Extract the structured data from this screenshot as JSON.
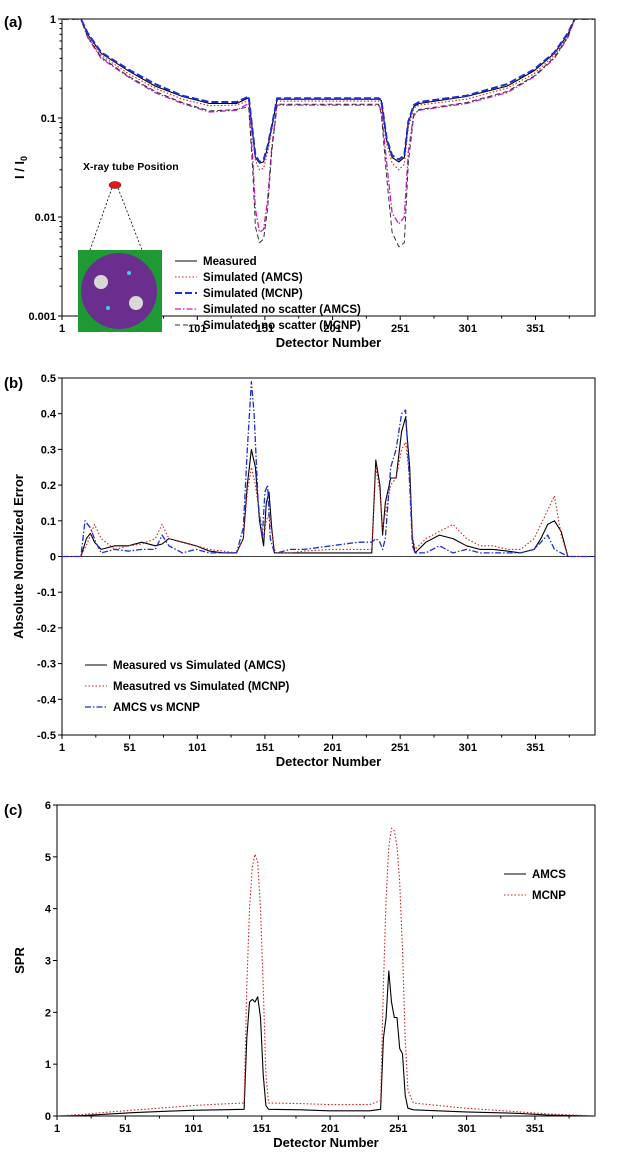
{
  "colors": {
    "black": "#000000",
    "red": "#d42020",
    "blue": "#1a2fd6",
    "magenta": "#c020c0",
    "gray": "#333333",
    "phantom_bg": "#1e9a34",
    "phantom_body": "#6a2f8e",
    "tube": "#e01818"
  },
  "chart_data": [
    {
      "type": "line",
      "panel_label": "(a)",
      "xlabel": "Detector Number",
      "ylabel": "I / I",
      "ylabel_sub": "0",
      "yscale": "log",
      "xlim": [
        1,
        395
      ],
      "ylim": [
        0.001,
        1
      ],
      "x_ticks": [
        "1",
        "51",
        "101",
        "151",
        "201",
        "251",
        "301",
        "351"
      ],
      "y_ticks": [
        "0.001",
        "0.01",
        "0.1",
        "1"
      ],
      "legend_position": "bottom-center",
      "inset": {
        "label": "X-ray tube Position",
        "kind": "phantom-image"
      },
      "series": [
        {
          "name": "Measured",
          "color": "#000000",
          "style": "solid",
          "x": [
            1,
            15,
            20,
            30,
            50,
            70,
            90,
            110,
            130,
            139,
            142,
            144,
            147,
            150,
            153,
            156,
            160,
            200,
            235,
            237,
            241,
            245,
            250,
            254,
            257,
            261,
            265,
            300,
            330,
            350,
            365,
            375,
            380,
            395
          ],
          "y": [
            1,
            1,
            0.7,
            0.45,
            0.3,
            0.21,
            0.165,
            0.14,
            0.14,
            0.16,
            0.07,
            0.04,
            0.035,
            0.036,
            0.05,
            0.08,
            0.155,
            0.155,
            0.155,
            0.15,
            0.06,
            0.04,
            0.036,
            0.04,
            0.09,
            0.13,
            0.14,
            0.165,
            0.21,
            0.3,
            0.45,
            0.7,
            1,
            1
          ]
        },
        {
          "name": "Simulated (AMCS)",
          "color": "#d42020",
          "style": "dotted",
          "x": [
            1,
            15,
            20,
            30,
            50,
            70,
            90,
            110,
            130,
            139,
            142,
            144,
            147,
            150,
            153,
            156,
            160,
            200,
            235,
            237,
            241,
            245,
            250,
            254,
            257,
            261,
            265,
            300,
            330,
            350,
            365,
            375,
            380,
            395
          ],
          "y": [
            1,
            1,
            0.68,
            0.43,
            0.28,
            0.2,
            0.155,
            0.133,
            0.135,
            0.15,
            0.065,
            0.037,
            0.03,
            0.031,
            0.045,
            0.075,
            0.148,
            0.148,
            0.148,
            0.14,
            0.055,
            0.035,
            0.03,
            0.034,
            0.08,
            0.125,
            0.135,
            0.155,
            0.2,
            0.28,
            0.43,
            0.68,
            1,
            1
          ]
        },
        {
          "name": "Simulated (MCNP)",
          "color": "#1a2fd6",
          "style": "dashed",
          "x": [
            1,
            15,
            20,
            30,
            50,
            70,
            90,
            110,
            130,
            139,
            142,
            144,
            147,
            150,
            153,
            156,
            160,
            200,
            235,
            237,
            241,
            245,
            250,
            254,
            257,
            261,
            265,
            300,
            330,
            350,
            365,
            375,
            380,
            395
          ],
          "y": [
            1,
            1,
            0.72,
            0.46,
            0.31,
            0.22,
            0.168,
            0.145,
            0.145,
            0.165,
            0.072,
            0.042,
            0.036,
            0.038,
            0.052,
            0.082,
            0.158,
            0.158,
            0.158,
            0.152,
            0.062,
            0.042,
            0.038,
            0.042,
            0.092,
            0.135,
            0.145,
            0.168,
            0.22,
            0.31,
            0.46,
            0.72,
            1,
            1
          ]
        },
        {
          "name": "Simulated no scatter (AMCS)",
          "color": "#c020c0",
          "style": "dashdot",
          "x": [
            1,
            15,
            20,
            30,
            50,
            70,
            90,
            110,
            130,
            139,
            142,
            144,
            147,
            150,
            153,
            156,
            160,
            200,
            235,
            237,
            241,
            245,
            250,
            254,
            257,
            261,
            265,
            300,
            330,
            350,
            365,
            375,
            380,
            395
          ],
          "y": [
            1,
            1,
            0.65,
            0.4,
            0.26,
            0.18,
            0.14,
            0.115,
            0.12,
            0.14,
            0.04,
            0.012,
            0.007,
            0.0075,
            0.015,
            0.05,
            0.135,
            0.135,
            0.135,
            0.12,
            0.035,
            0.011,
            0.0085,
            0.01,
            0.045,
            0.11,
            0.12,
            0.14,
            0.18,
            0.26,
            0.4,
            0.65,
            1,
            1
          ]
        },
        {
          "name": "Simulated no scatter (MCNP)",
          "color": "#333333",
          "style": "longdash",
          "x": [
            1,
            15,
            20,
            30,
            50,
            70,
            90,
            110,
            130,
            139,
            142,
            144,
            147,
            150,
            153,
            156,
            160,
            200,
            235,
            237,
            241,
            245,
            250,
            254,
            257,
            261,
            265,
            300,
            330,
            350,
            365,
            375,
            380,
            395
          ],
          "y": [
            1,
            1,
            0.66,
            0.41,
            0.265,
            0.185,
            0.143,
            0.118,
            0.122,
            0.13,
            0.03,
            0.008,
            0.0055,
            0.006,
            0.012,
            0.045,
            0.138,
            0.138,
            0.138,
            0.11,
            0.025,
            0.007,
            0.005,
            0.0055,
            0.035,
            0.105,
            0.122,
            0.143,
            0.185,
            0.265,
            0.41,
            0.66,
            1,
            1
          ]
        }
      ]
    },
    {
      "type": "line",
      "panel_label": "(b)",
      "xlabel": "Detector Number",
      "ylabel": "Absolute Normalized Error",
      "xlim": [
        1,
        395
      ],
      "ylim": [
        -0.5,
        0.5
      ],
      "x_ticks": [
        "1",
        "51",
        "101",
        "151",
        "201",
        "251",
        "301",
        "351"
      ],
      "y_ticks": [
        "-0.5",
        "-0.4",
        "-0.3",
        "-0.2",
        "-0.1",
        "0",
        "0.1",
        "0.2",
        "0.3",
        "0.4",
        "0.5"
      ],
      "legend_position": "bottom-left",
      "series": [
        {
          "name": "Measured vs Simulated (AMCS)",
          "color": "#000000",
          "style": "solid",
          "x": [
            1,
            15,
            19,
            22,
            25,
            30,
            40,
            50,
            60,
            70,
            75,
            80,
            90,
            100,
            110,
            120,
            130,
            135,
            138,
            141,
            144,
            147,
            150,
            152,
            154,
            156,
            158,
            160,
            170,
            180,
            200,
            220,
            230,
            233,
            236,
            238,
            240,
            244,
            248,
            252,
            255,
            258,
            260,
            262,
            270,
            280,
            290,
            300,
            310,
            320,
            330,
            340,
            350,
            355,
            360,
            365,
            370,
            375,
            395
          ],
          "y": [
            0,
            0,
            0.05,
            0.065,
            0.04,
            0.02,
            0.03,
            0.03,
            0.04,
            0.03,
            0.035,
            0.05,
            0.04,
            0.03,
            0.015,
            0.01,
            0.01,
            0.05,
            0.2,
            0.3,
            0.25,
            0.1,
            0.03,
            0.15,
            0.18,
            0.08,
            0.01,
            0.01,
            0.01,
            0.01,
            0.01,
            0.01,
            0.01,
            0.27,
            0.2,
            0.06,
            0.15,
            0.22,
            0.22,
            0.35,
            0.39,
            0.25,
            0.05,
            0.01,
            0.04,
            0.06,
            0.05,
            0.03,
            0.02,
            0.02,
            0.015,
            0.01,
            0.02,
            0.05,
            0.09,
            0.1,
            0.07,
            0,
            0
          ]
        },
        {
          "name": "Measutred vs Simulated (MCNP)",
          "color": "#d42020",
          "style": "dotted",
          "x": [
            1,
            15,
            20,
            25,
            30,
            40,
            50,
            60,
            70,
            75,
            80,
            90,
            100,
            110,
            120,
            130,
            135,
            138,
            141,
            144,
            147,
            150,
            152,
            154,
            156,
            158,
            160,
            170,
            180,
            200,
            220,
            230,
            233,
            236,
            238,
            240,
            244,
            248,
            252,
            255,
            258,
            260,
            262,
            270,
            280,
            290,
            300,
            310,
            320,
            330,
            340,
            350,
            355,
            360,
            365,
            370,
            375,
            395
          ],
          "y": [
            0,
            0,
            0.04,
            0.09,
            0.05,
            0.02,
            0.03,
            0.035,
            0.05,
            0.09,
            0.05,
            0.04,
            0.03,
            0.02,
            0.015,
            0.01,
            0.05,
            0.18,
            0.25,
            0.2,
            0.12,
            0.05,
            0.1,
            0.12,
            0.07,
            0.02,
            0.01,
            0.01,
            0.015,
            0.02,
            0.02,
            0.02,
            0.25,
            0.18,
            0.08,
            0.12,
            0.2,
            0.22,
            0.3,
            0.32,
            0.22,
            0.06,
            0.02,
            0.05,
            0.07,
            0.09,
            0.05,
            0.03,
            0.03,
            0.02,
            0.02,
            0.05,
            0.09,
            0.13,
            0.17,
            0.06,
            0,
            0
          ]
        },
        {
          "name": "AMCS vs MCNP",
          "color": "#1a2fd6",
          "style": "dashdot",
          "x": [
            1,
            15,
            18,
            22,
            26,
            30,
            40,
            50,
            60,
            70,
            75,
            80,
            90,
            100,
            110,
            120,
            130,
            135,
            138,
            141,
            143,
            146,
            149,
            151,
            153,
            155,
            158,
            160,
            170,
            180,
            200,
            220,
            230,
            233,
            236,
            238,
            240,
            244,
            248,
            252,
            255,
            258,
            260,
            262,
            270,
            280,
            290,
            300,
            310,
            320,
            330,
            340,
            350,
            355,
            360,
            365,
            370,
            375,
            395
          ],
          "y": [
            0,
            0,
            0.1,
            0.08,
            0.04,
            0.01,
            0.02,
            0.015,
            0.02,
            0.02,
            0.06,
            0.03,
            0.01,
            0.02,
            0.01,
            0.01,
            0.01,
            0.08,
            0.3,
            0.49,
            0.4,
            0.15,
            0.05,
            0.18,
            0.2,
            0.05,
            0.01,
            0.01,
            0.02,
            0.02,
            0.03,
            0.04,
            0.04,
            0.05,
            0.04,
            0.02,
            0.05,
            0.25,
            0.3,
            0.4,
            0.41,
            0.2,
            0.03,
            0.01,
            0.01,
            0.03,
            0.01,
            0.02,
            0.01,
            0.01,
            0.01,
            0.01,
            0.02,
            0.04,
            0.06,
            0.02,
            0.01,
            0,
            0
          ]
        }
      ]
    },
    {
      "type": "line",
      "panel_label": "(c)",
      "xlabel": "Detector Number",
      "ylabel": "SPR",
      "xlim": [
        1,
        395
      ],
      "ylim": [
        0,
        6
      ],
      "x_ticks": [
        "1",
        "51",
        "101",
        "151",
        "201",
        "251",
        "301",
        "351"
      ],
      "y_ticks": [
        "0",
        "1",
        "2",
        "3",
        "4",
        "5",
        "6"
      ],
      "legend_position": "top-right",
      "series": [
        {
          "name": "AMCS",
          "color": "#000000",
          "style": "solid",
          "x": [
            1,
            20,
            40,
            60,
            80,
            100,
            120,
            138,
            140,
            142,
            144,
            146,
            148,
            150,
            152,
            154,
            156,
            180,
            200,
            230,
            238,
            240,
            242,
            244,
            246,
            248,
            250,
            252,
            254,
            256,
            258,
            262,
            300,
            340,
            360,
            395
          ],
          "y": [
            0,
            0.01,
            0.04,
            0.07,
            0.09,
            0.11,
            0.12,
            0.13,
            1.5,
            2.2,
            2.25,
            2.2,
            2.3,
            1.9,
            0.8,
            0.2,
            0.13,
            0.12,
            0.1,
            0.1,
            0.13,
            1.5,
            1.9,
            2.8,
            2.2,
            1.9,
            1.9,
            1.3,
            1.2,
            0.4,
            0.15,
            0.12,
            0.08,
            0.05,
            0.02,
            0
          ]
        },
        {
          "name": "MCNP",
          "color": "#d42020",
          "style": "dotted",
          "x": [
            1,
            20,
            40,
            60,
            80,
            100,
            120,
            138,
            140,
            142,
            144,
            146,
            148,
            150,
            152,
            154,
            156,
            180,
            200,
            230,
            238,
            240,
            242,
            244,
            246,
            248,
            250,
            252,
            254,
            256,
            258,
            262,
            300,
            340,
            360,
            395
          ],
          "y": [
            0,
            0.03,
            0.08,
            0.12,
            0.16,
            0.2,
            0.23,
            0.25,
            2.5,
            4.0,
            4.8,
            5.05,
            4.9,
            4.0,
            2.5,
            0.8,
            0.25,
            0.24,
            0.22,
            0.22,
            0.3,
            2.5,
            4.2,
            5.2,
            5.55,
            5.5,
            5.2,
            4.5,
            3.2,
            1.5,
            0.5,
            0.25,
            0.15,
            0.08,
            0.04,
            0
          ]
        }
      ]
    }
  ]
}
